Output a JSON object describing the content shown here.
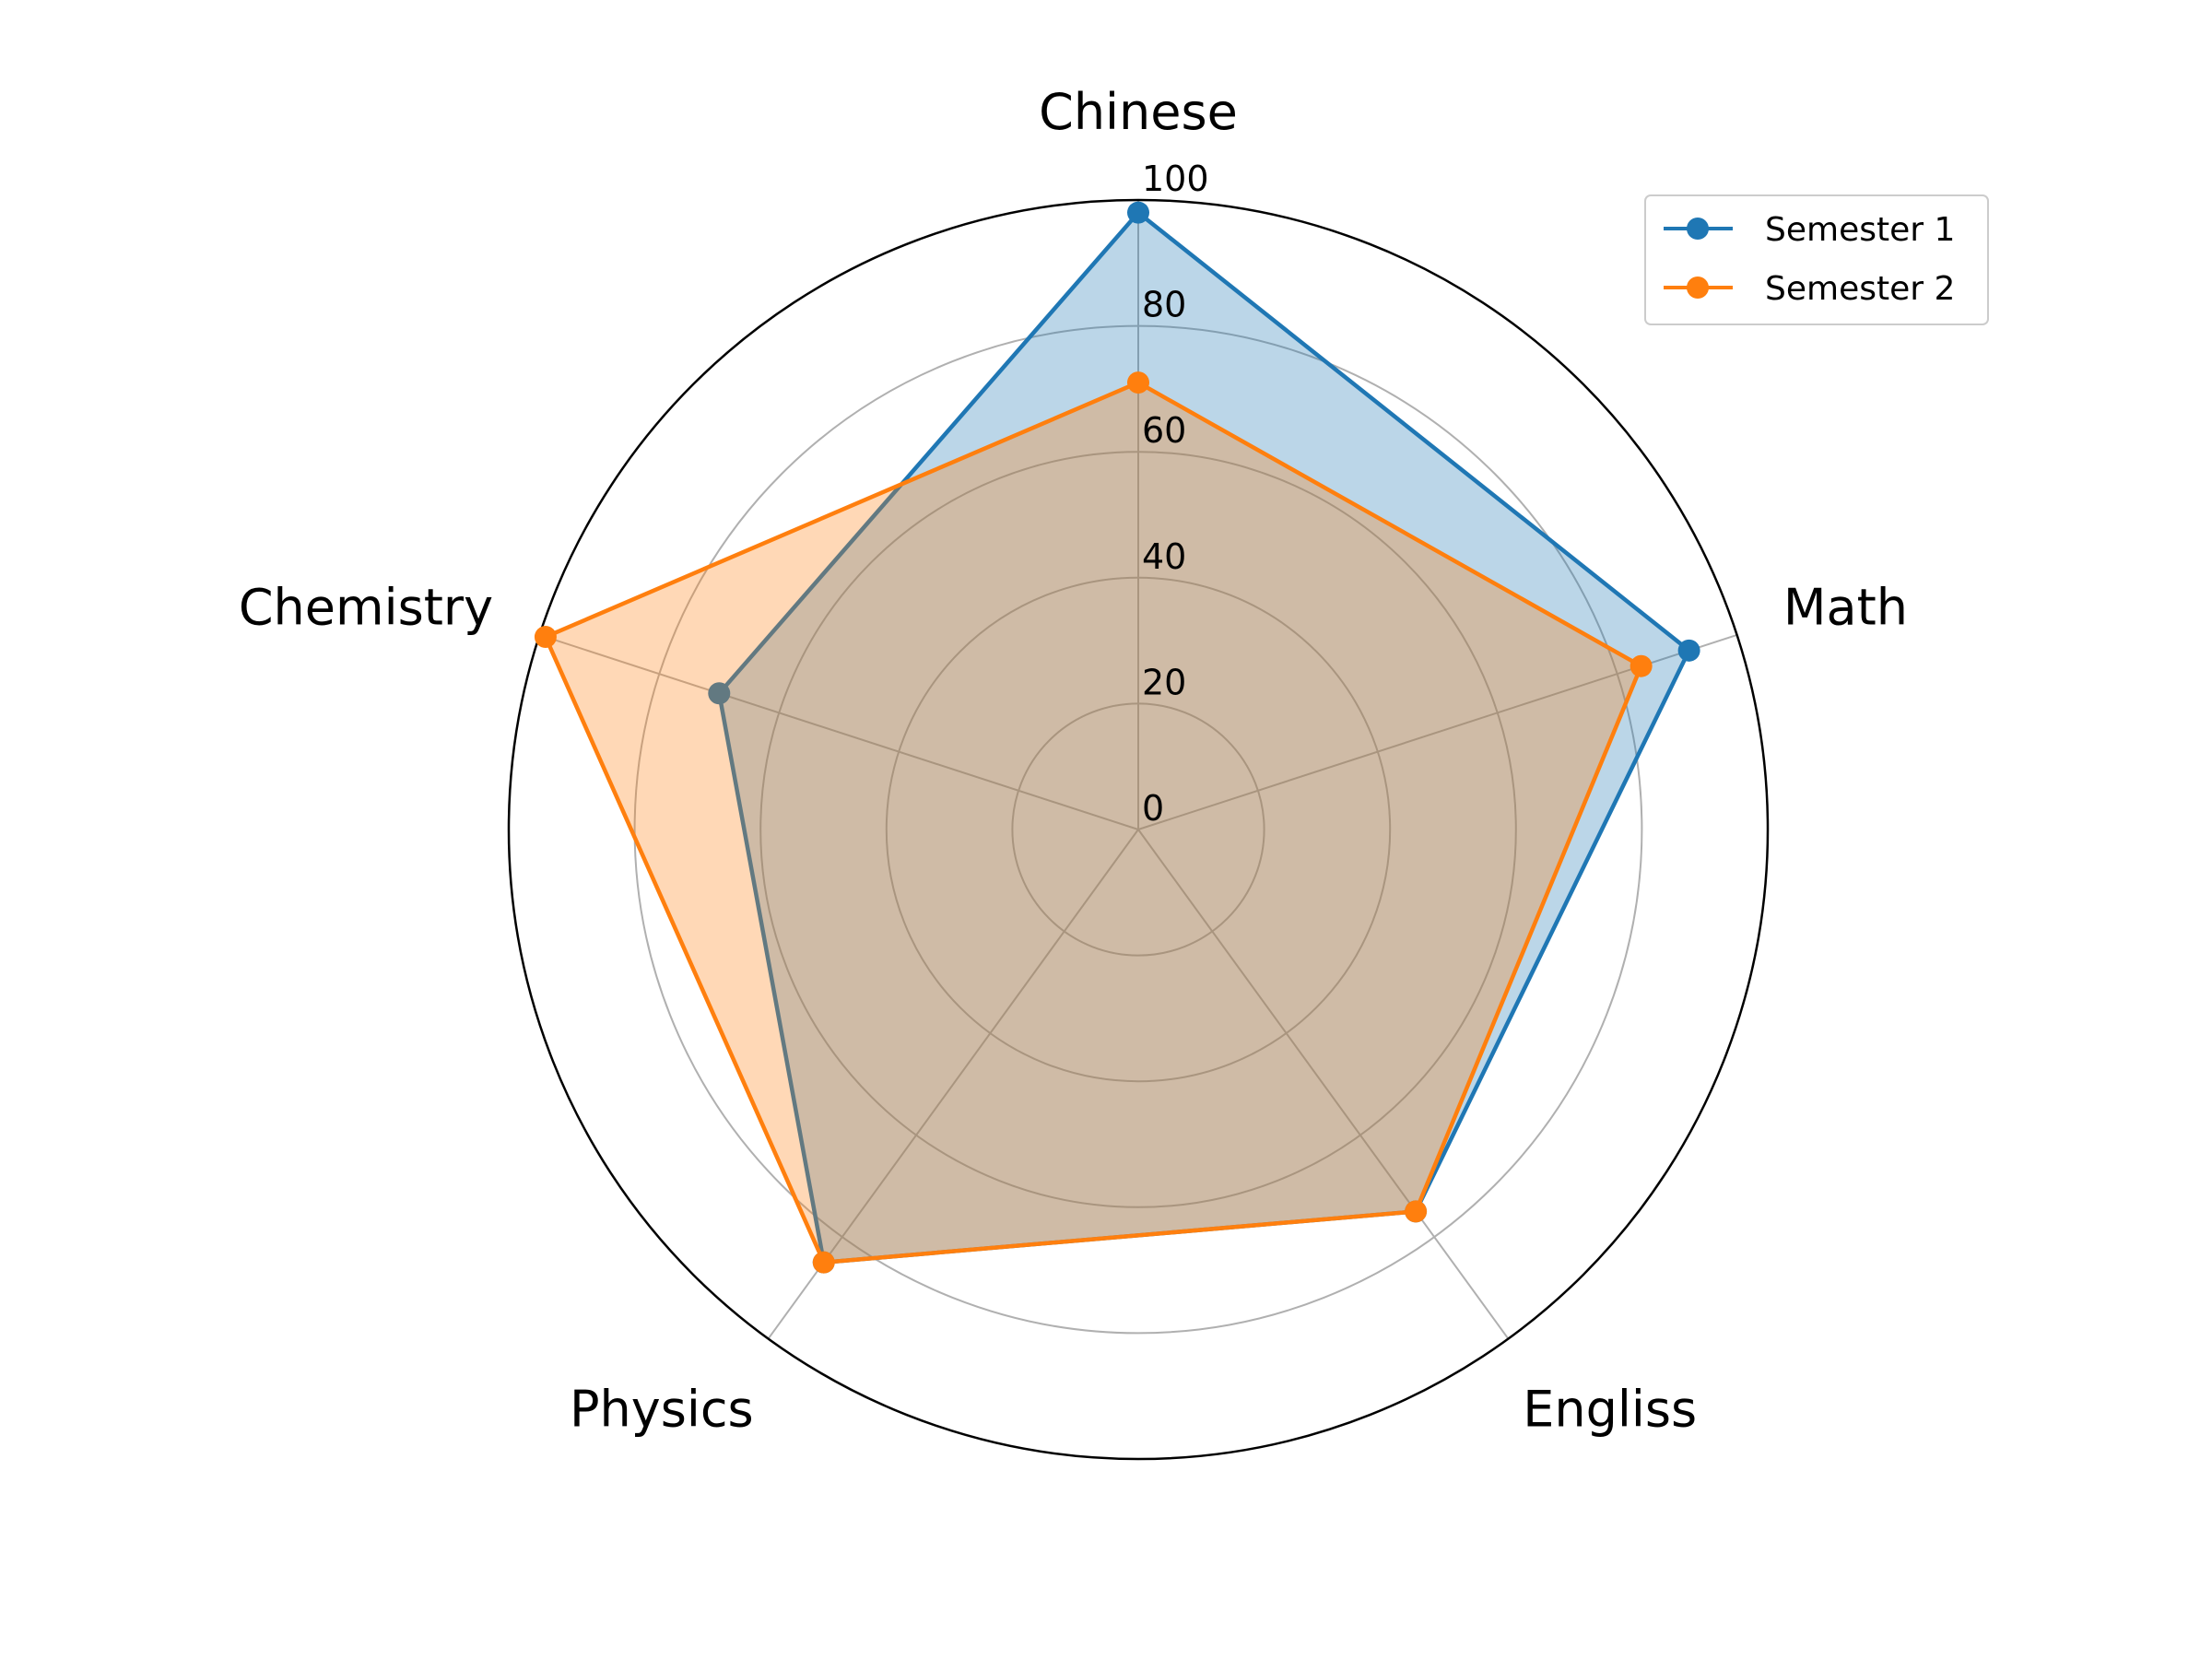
{
  "chart_data": {
    "type": "radar",
    "categories": [
      "Chinese",
      "Math",
      "Engliss",
      "Physics",
      "Chemistry"
    ],
    "series": [
      {
        "name": "Semester 1",
        "values": [
          98,
          92,
          75,
          85,
          70
        ],
        "color": "#1f77b4"
      },
      {
        "name": "Semester 2",
        "values": [
          71,
          84,
          75,
          85,
          99
        ],
        "color": "#ff7f0e"
      }
    ],
    "rlim": [
      0,
      100
    ],
    "rticks": [
      0,
      20,
      40,
      60,
      80,
      100
    ],
    "grid": true,
    "legend_position": "top-right"
  }
}
